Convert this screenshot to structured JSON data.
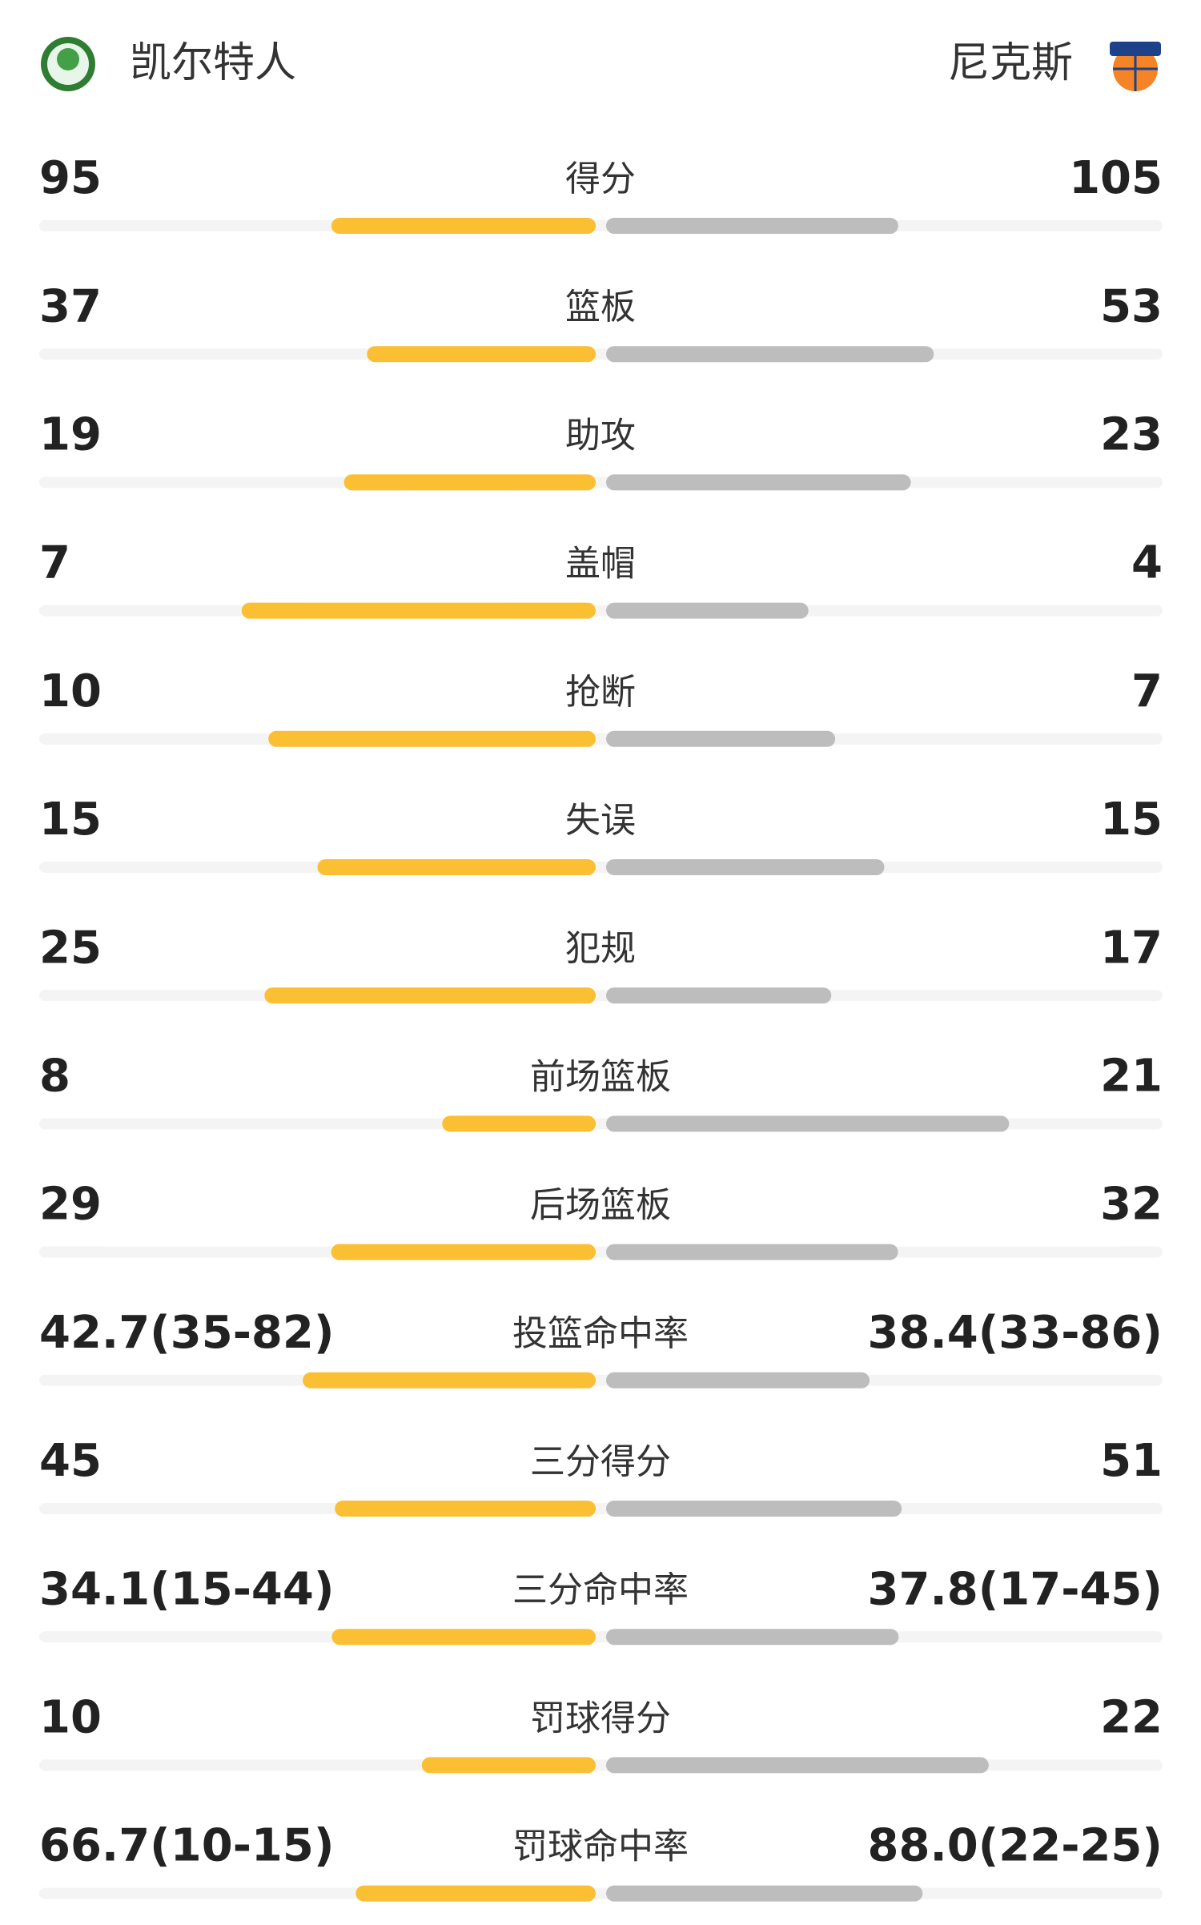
{
  "header": {
    "home": "凯尔特人",
    "away": "尼克斯"
  },
  "stats": [
    {
      "label": "得分",
      "home": 95,
      "away": 105
    },
    {
      "label": "篮板",
      "home": 37,
      "away": 53
    },
    {
      "label": "助攻",
      "home": 19,
      "away": 23
    },
    {
      "label": "盖帽",
      "home": 7,
      "away": 4
    },
    {
      "label": "抢断",
      "home": 10,
      "away": 7
    },
    {
      "label": "失误",
      "home": 15,
      "away": 15
    },
    {
      "label": "犯规",
      "home": 25,
      "away": 17
    },
    {
      "label": "前场篮板",
      "home": 8,
      "away": 21
    },
    {
      "label": "后场篮板",
      "home": 29,
      "away": 32
    },
    {
      "label": "投篮命中率",
      "home": 42.7,
      "away": 38.4,
      "home_label": "42.7(35-82)",
      "away_label": "38.4(33-86)"
    },
    {
      "label": "三分得分",
      "home": 45,
      "away": 51
    },
    {
      "label": "三分命中率",
      "home": 34.1,
      "away": 37.8,
      "home_label": "34.1(15-44)",
      "away_label": "37.8(17-45)"
    },
    {
      "label": "罚球得分",
      "home": 10,
      "away": 22
    },
    {
      "label": "罚球命中率",
      "home": 66.7,
      "away": 88.0,
      "home_label": "66.7(10-15)",
      "away_label": "88.0(22-25)"
    }
  ]
}
